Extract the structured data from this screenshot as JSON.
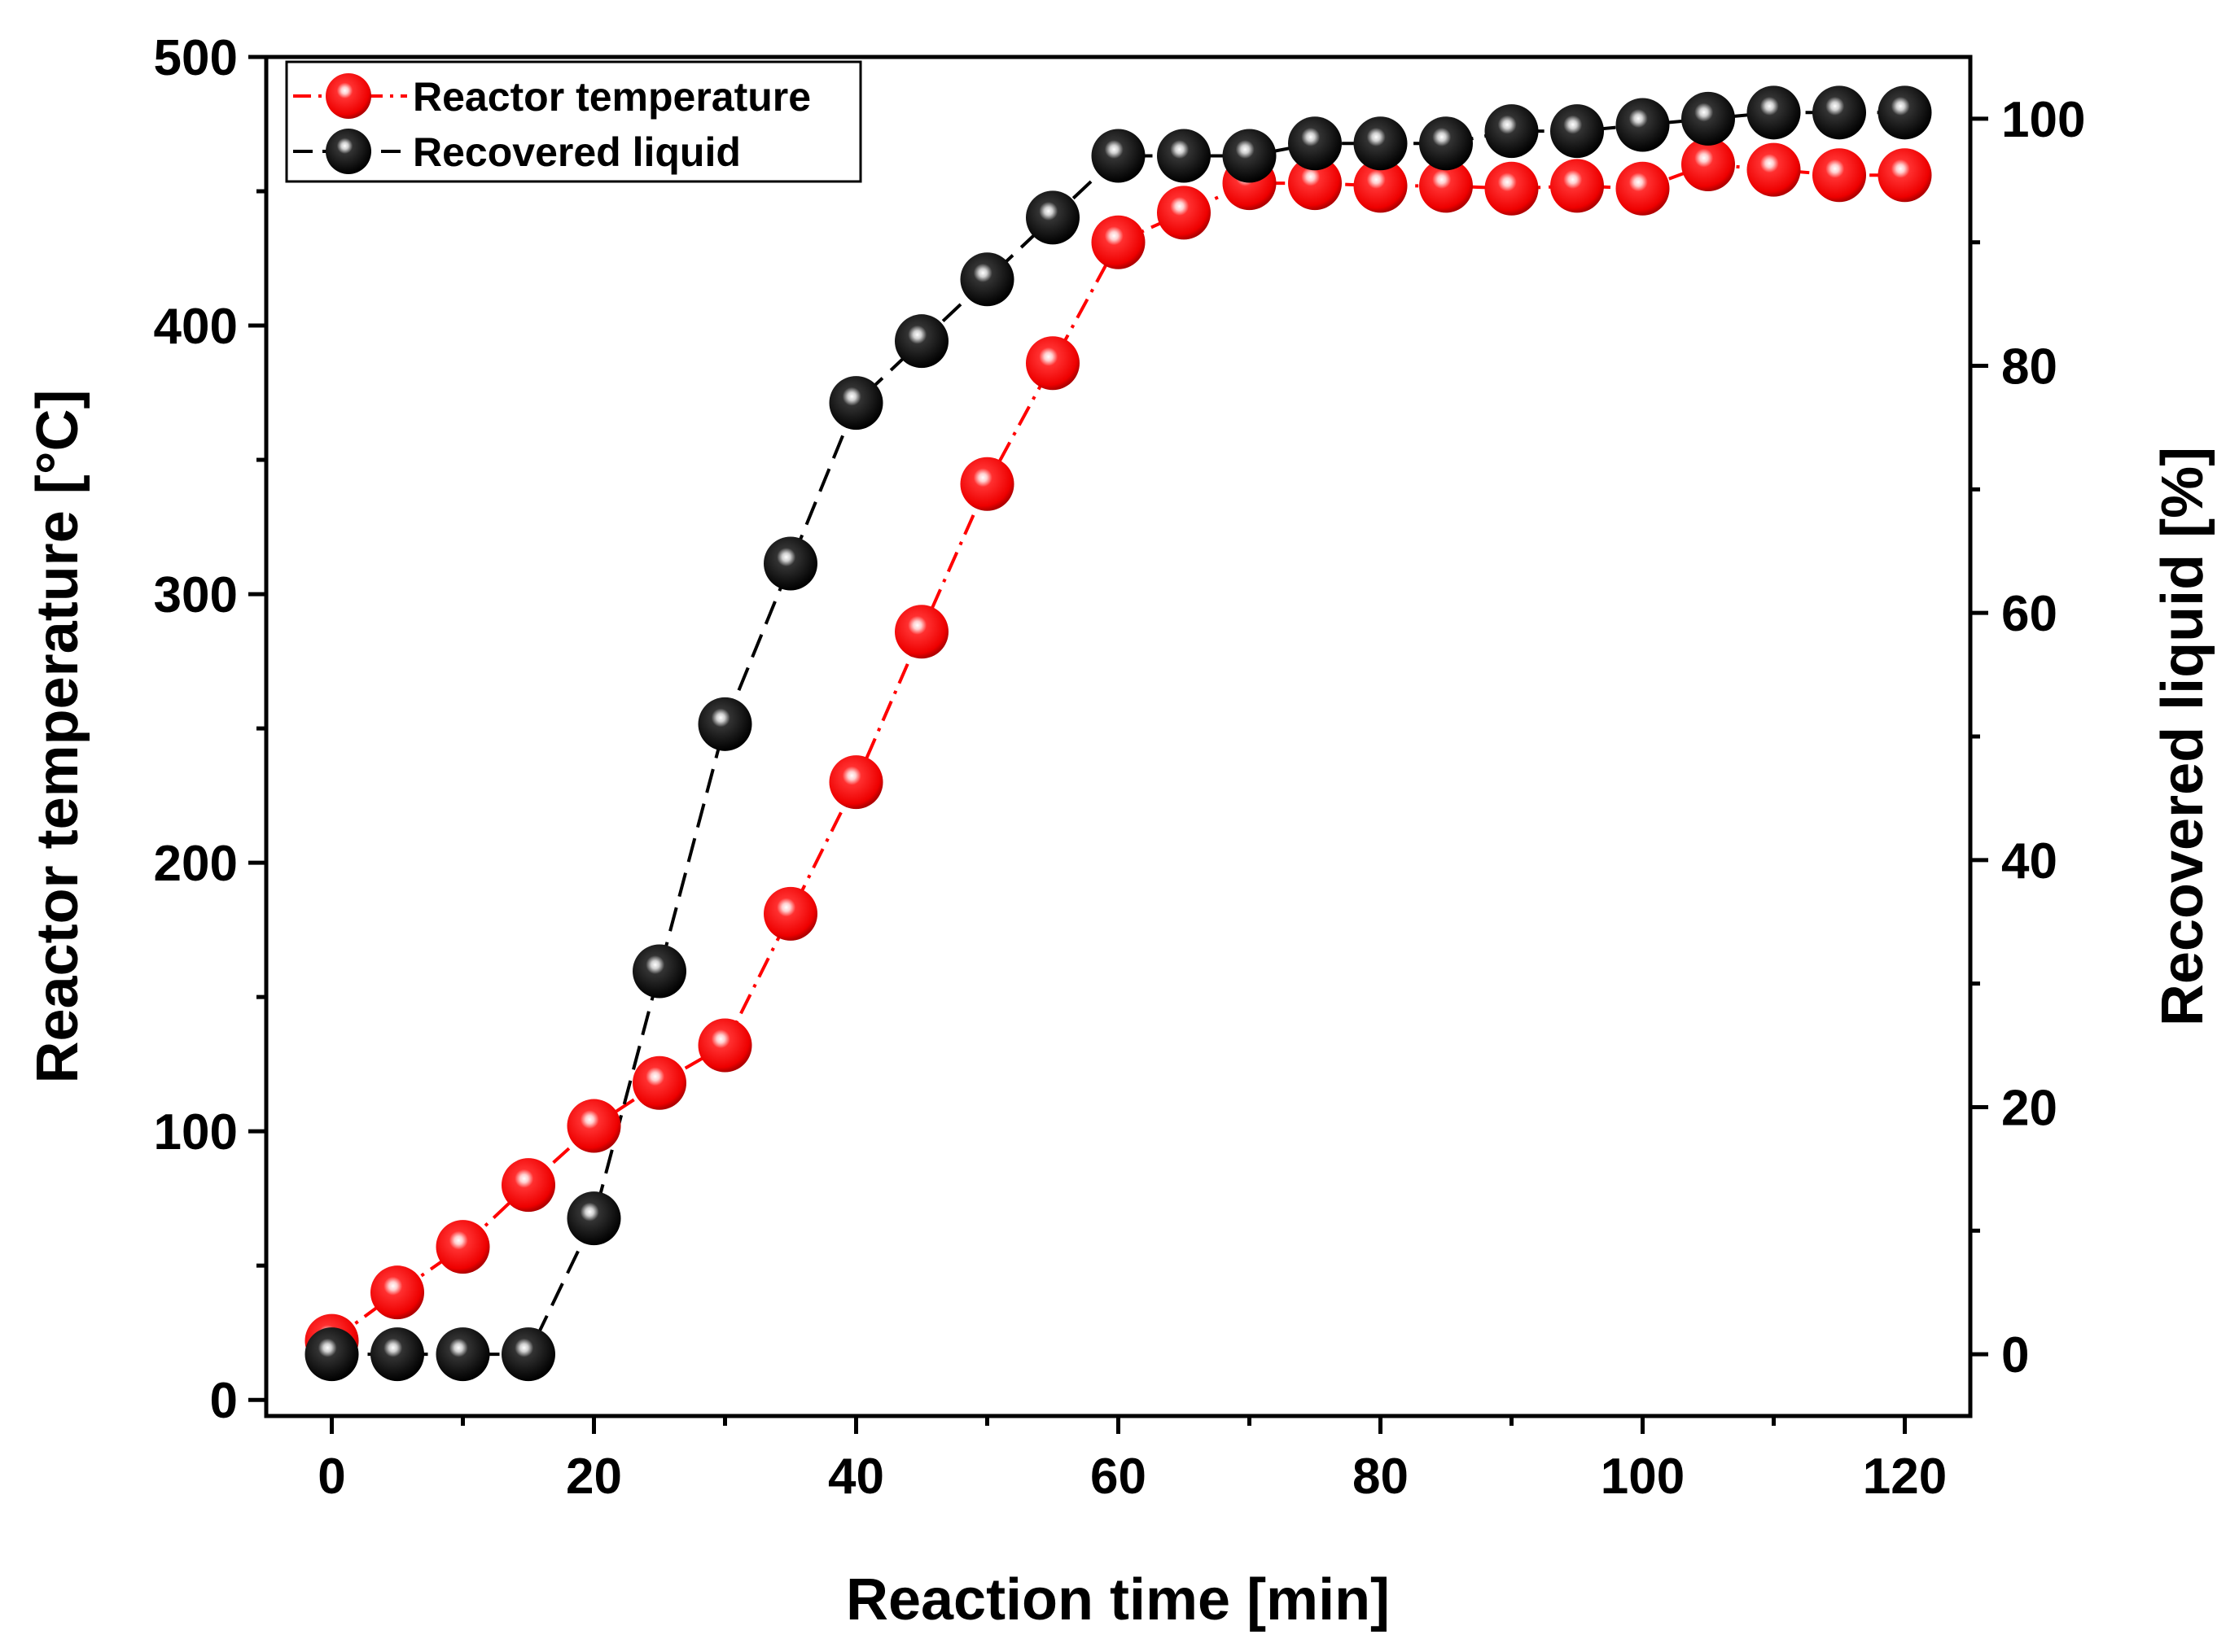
{
  "chart_data": {
    "type": "line",
    "x": [
      0,
      5,
      10,
      15,
      20,
      25,
      30,
      35,
      40,
      45,
      50,
      55,
      60,
      65,
      70,
      75,
      80,
      85,
      90,
      95,
      100,
      105,
      110,
      115,
      120
    ],
    "series": [
      {
        "name": "Reactor temperature",
        "axis": "left",
        "color": "#ff0000",
        "line_style": "dash-dot",
        "values": [
          22,
          40,
          57,
          80,
          102,
          118,
          132,
          181,
          230,
          286,
          341,
          386,
          431,
          442,
          453,
          453,
          452,
          452,
          451,
          452,
          451,
          460,
          458,
          456,
          456
        ]
      },
      {
        "name": "Recovered liquid",
        "axis": "right",
        "color": "#000000",
        "line_style": "dash",
        "values": [
          0,
          0,
          0,
          0,
          11,
          31,
          51,
          64,
          77,
          82,
          87,
          92,
          97,
          97,
          97,
          98,
          98,
          98,
          99,
          99,
          99.5,
          100,
          100.5,
          100.5,
          100.5
        ]
      }
    ],
    "xlabel": "Reaction time [min]",
    "ylabel": "Reactor temperature [°C]",
    "y2label": "Recovered liquid [%]",
    "xlim": [
      -5,
      125
    ],
    "ylim": [
      -6,
      500
    ],
    "y2lim": [
      -5,
      105
    ],
    "xticks": [
      0,
      20,
      40,
      60,
      80,
      100,
      120
    ],
    "yticks": [
      0,
      100,
      200,
      300,
      400,
      500
    ],
    "y2ticks": [
      0,
      20,
      40,
      60,
      80,
      100
    ],
    "legend_position": "top-left",
    "grid": false
  }
}
